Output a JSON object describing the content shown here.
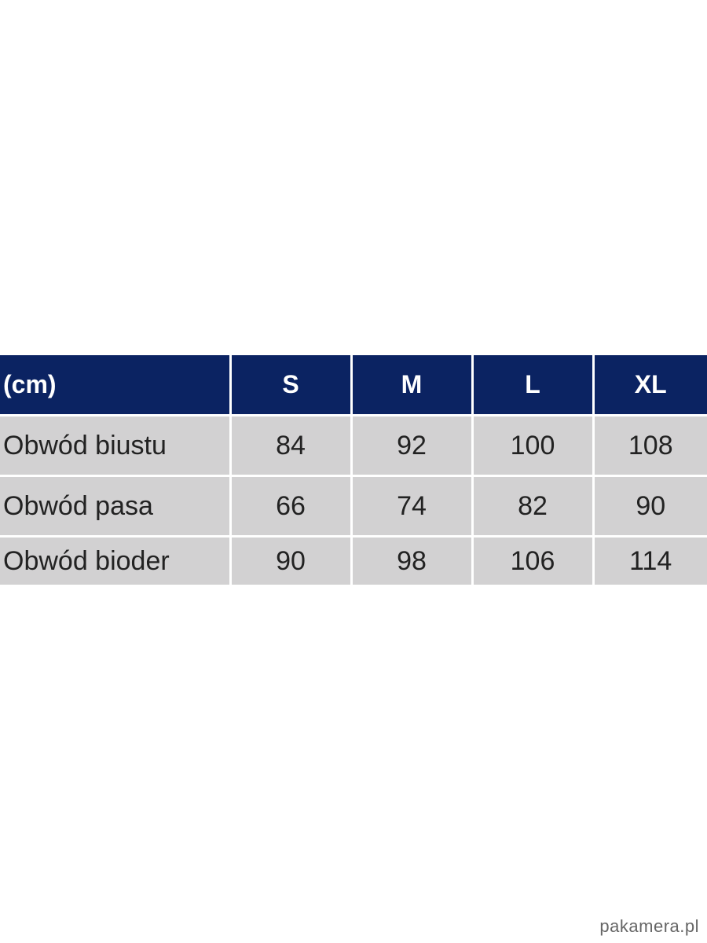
{
  "table": {
    "headers": [
      "(cm)",
      "S",
      "M",
      "L",
      "XL"
    ],
    "rows": [
      {
        "label": "Obwód biustu",
        "values": [
          "84",
          "92",
          "100",
          "108"
        ]
      },
      {
        "label": "Obwód pasa",
        "values": [
          "66",
          "74",
          "82",
          "90"
        ]
      },
      {
        "label": "Obwód bioder",
        "values": [
          "90",
          "98",
          "106",
          "114"
        ]
      }
    ]
  },
  "watermark": "pakamera.pl",
  "colors": {
    "header_bg": "#0b2362",
    "row_bg": "#d2d1d2"
  }
}
